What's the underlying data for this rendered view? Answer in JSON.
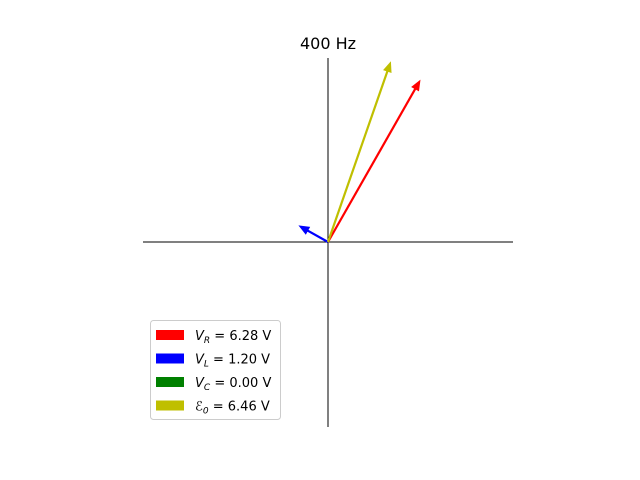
{
  "chart_data": {
    "type": "phasor",
    "title": "400 Hz",
    "xlim": [
      -1,
      1
    ],
    "ylim": [
      -1,
      1
    ],
    "grid": false,
    "legend_placement": "lower-left",
    "series": [
      {
        "name": "V_R",
        "symbol": "V",
        "subscript": "R",
        "value_text": " = 6.28 V",
        "color": "#ff0000",
        "x": 0.5,
        "y": 0.88
      },
      {
        "name": "V_L",
        "symbol": "V",
        "subscript": "L",
        "value_text": " = 1.20 V",
        "color": "#0000ff",
        "x": -0.16,
        "y": 0.09
      },
      {
        "name": "V_C",
        "symbol": "V",
        "subscript": "C",
        "value_text": " = 0.00 V",
        "color": "#008000",
        "x": 0.0,
        "y": 0.0
      },
      {
        "name": "E_0",
        "symbol": "ℰ",
        "subscript": "0",
        "value_text": " = 6.46 V",
        "color": "#bfbf00",
        "x": 0.34,
        "y": 0.98
      }
    ]
  }
}
